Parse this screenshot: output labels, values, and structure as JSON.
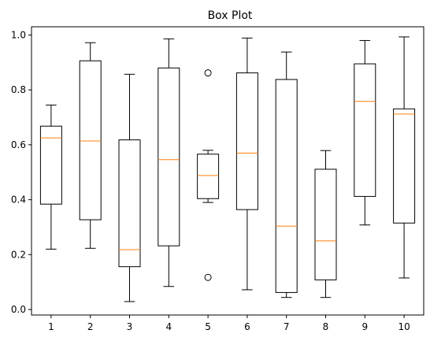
{
  "chart_data": {
    "type": "box",
    "title": "Box Plot",
    "xlabel": "",
    "ylabel": "",
    "ylim": [
      -0.02,
      1.03
    ],
    "yticks": [
      0.0,
      0.2,
      0.4,
      0.6,
      0.8,
      1.0
    ],
    "ytick_labels": [
      "0.0",
      "0.2",
      "0.4",
      "0.6",
      "0.8",
      "1.0"
    ],
    "categories": [
      "1",
      "2",
      "3",
      "4",
      "5",
      "6",
      "7",
      "8",
      "9",
      "10"
    ],
    "boxes": [
      {
        "label": "1",
        "whislo": 0.22,
        "q1": 0.384,
        "med": 0.625,
        "q3": 0.668,
        "whishi": 0.745,
        "fliers": []
      },
      {
        "label": "2",
        "whislo": 0.223,
        "q1": 0.327,
        "med": 0.614,
        "q3": 0.906,
        "whishi": 0.972,
        "fliers": []
      },
      {
        "label": "3",
        "whislo": 0.029,
        "q1": 0.156,
        "med": 0.218,
        "q3": 0.618,
        "whishi": 0.857,
        "fliers": []
      },
      {
        "label": "4",
        "whislo": 0.084,
        "q1": 0.232,
        "med": 0.546,
        "q3": 0.88,
        "whishi": 0.986,
        "fliers": []
      },
      {
        "label": "5",
        "whislo": 0.39,
        "q1": 0.404,
        "med": 0.488,
        "q3": 0.566,
        "whishi": 0.58,
        "fliers": [
          0.862,
          0.117
        ]
      },
      {
        "label": "6",
        "whislo": 0.072,
        "q1": 0.364,
        "med": 0.57,
        "q3": 0.862,
        "whishi": 0.989,
        "fliers": []
      },
      {
        "label": "7",
        "whislo": 0.044,
        "q1": 0.062,
        "med": 0.304,
        "q3": 0.838,
        "whishi": 0.938,
        "fliers": []
      },
      {
        "label": "8",
        "whislo": 0.044,
        "q1": 0.108,
        "med": 0.25,
        "q3": 0.511,
        "whishi": 0.579,
        "fliers": []
      },
      {
        "label": "9",
        "whislo": 0.308,
        "q1": 0.412,
        "med": 0.758,
        "q3": 0.895,
        "whishi": 0.98,
        "fliers": []
      },
      {
        "label": "10",
        "whislo": 0.115,
        "q1": 0.315,
        "med": 0.712,
        "q3": 0.731,
        "whishi": 0.993,
        "fliers": []
      }
    ],
    "colors": {
      "box": "#000000",
      "median": "#ff7f0e",
      "flier_edge": "#000000"
    },
    "grid": false,
    "legend": "none"
  }
}
